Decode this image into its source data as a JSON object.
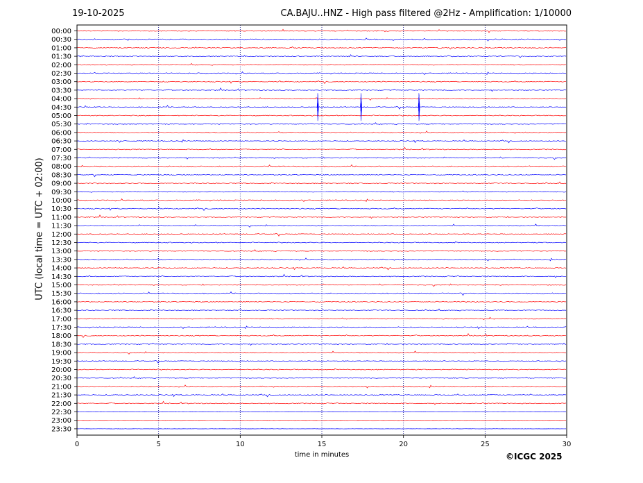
{
  "header": {
    "date": "19-10-2025",
    "title": "CA.BAJU..HNZ - High pass filtered @2Hz - Amplification: 1/10000"
  },
  "footer": {
    "copyright": "©ICGC 2025"
  },
  "colors": {
    "red": "#ff0000",
    "blue": "#0000ff",
    "axis": "#000000",
    "grid": "#000080"
  },
  "chart_data": {
    "type": "line",
    "title": "CA.BAJU..HNZ - High pass filtered @2Hz - Amplification: 1/10000",
    "xlabel": "time in minutes",
    "ylabel": "UTC (local time = UTC + 02:00)",
    "xlim": [
      0,
      30
    ],
    "x_ticks": [
      0,
      5,
      10,
      15,
      20,
      25,
      30
    ],
    "grid": "vertical dotted lines at 5-minute intervals",
    "rows": [
      "00:00",
      "00:30",
      "01:00",
      "01:30",
      "02:00",
      "02:30",
      "03:00",
      "03:30",
      "04:00",
      "04:30",
      "05:00",
      "05:30",
      "06:00",
      "06:30",
      "07:00",
      "07:30",
      "08:00",
      "08:30",
      "09:00",
      "09:30",
      "10:00",
      "10:30",
      "11:00",
      "11:30",
      "12:00",
      "12:30",
      "13:00",
      "13:30",
      "14:00",
      "14:30",
      "15:00",
      "15:30",
      "16:00",
      "16:30",
      "17:00",
      "17:30",
      "18:00",
      "18:30",
      "19:00",
      "19:30",
      "20:00",
      "20:30",
      "21:00",
      "21:30",
      "22:00",
      "22:30",
      "23:00",
      "23:30"
    ],
    "row_colors": "alternating red and blue starting with red",
    "events": [
      {
        "row": "04:30",
        "minute": 14.75,
        "note": "vertical spike"
      },
      {
        "row": "04:30",
        "minute": 17.4,
        "note": "vertical spike"
      },
      {
        "row": "04:30",
        "minute": 20.95,
        "note": "vertical spike"
      }
    ]
  }
}
